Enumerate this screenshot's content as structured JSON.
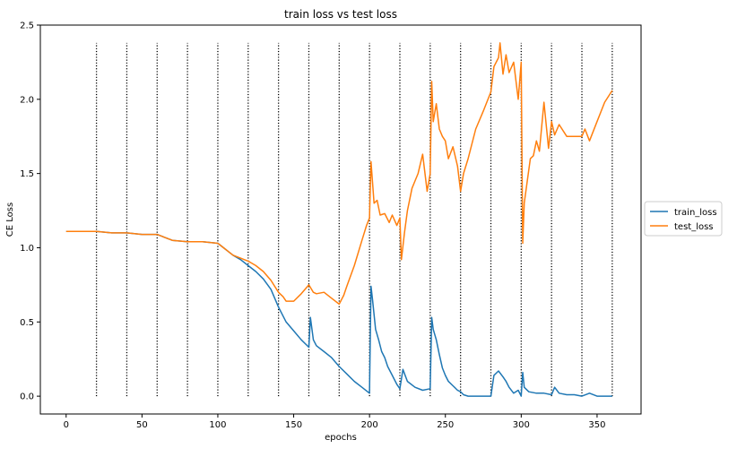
{
  "chart_data": {
    "type": "line",
    "title": "train loss vs test loss",
    "xlabel": "epochs",
    "ylabel": "CE Loss",
    "xlim": [
      -17,
      379
    ],
    "ylim": [
      -0.12,
      2.5
    ],
    "xticks": [
      0,
      50,
      100,
      150,
      200,
      250,
      300,
      350
    ],
    "yticks": [
      0.0,
      0.5,
      1.0,
      1.5,
      2.0,
      2.5
    ],
    "xtick_labels": [
      "0",
      "50",
      "100",
      "150",
      "200",
      "250",
      "300",
      "350"
    ],
    "ytick_labels": [
      "0.0",
      "0.5",
      "1.0",
      "1.5",
      "2.0",
      "2.5"
    ],
    "legend_position": "right, outside plot",
    "vlines": {
      "x": [
        20,
        40,
        60,
        80,
        100,
        120,
        140,
        160,
        180,
        200,
        220,
        240,
        260,
        280,
        300,
        320,
        340,
        360
      ],
      "ymin": 0.0,
      "ymax": 2.38,
      "style": "dotted",
      "color": "#000000"
    },
    "series": [
      {
        "name": "train_loss",
        "color": "#1f77b4",
        "x": [
          0,
          10,
          20,
          30,
          40,
          50,
          60,
          65,
          70,
          80,
          90,
          100,
          105,
          110,
          115,
          120,
          125,
          130,
          135,
          140,
          145,
          150,
          155,
          160,
          161,
          163,
          165,
          170,
          175,
          180,
          185,
          190,
          195,
          200,
          201,
          202,
          204,
          206,
          208,
          210,
          212,
          215,
          218,
          220,
          222,
          225,
          230,
          235,
          240,
          241,
          242,
          244,
          246,
          248,
          250,
          252,
          255,
          258,
          260,
          262,
          265,
          270,
          275,
          280,
          282,
          285,
          288,
          290,
          292,
          295,
          298,
          300,
          301,
          302,
          305,
          310,
          315,
          320,
          322,
          325,
          330,
          335,
          340,
          345,
          350,
          355,
          360
        ],
        "y": [
          1.11,
          1.11,
          1.11,
          1.1,
          1.1,
          1.09,
          1.09,
          1.07,
          1.05,
          1.04,
          1.04,
          1.03,
          0.99,
          0.95,
          0.92,
          0.88,
          0.84,
          0.79,
          0.72,
          0.6,
          0.5,
          0.44,
          0.38,
          0.33,
          0.53,
          0.38,
          0.34,
          0.3,
          0.26,
          0.2,
          0.15,
          0.1,
          0.06,
          0.02,
          0.74,
          0.65,
          0.45,
          0.38,
          0.3,
          0.26,
          0.2,
          0.14,
          0.08,
          0.05,
          0.18,
          0.1,
          0.06,
          0.04,
          0.05,
          0.53,
          0.45,
          0.38,
          0.28,
          0.19,
          0.14,
          0.1,
          0.07,
          0.04,
          0.03,
          0.01,
          0.0,
          0.0,
          0.0,
          0.0,
          0.14,
          0.17,
          0.13,
          0.1,
          0.06,
          0.02,
          0.04,
          0.0,
          0.16,
          0.06,
          0.03,
          0.02,
          0.02,
          0.01,
          0.06,
          0.02,
          0.01,
          0.01,
          0.0,
          0.02,
          0.0,
          0.0,
          0.0
        ]
      },
      {
        "name": "test_loss",
        "color": "#ff7f0e",
        "x": [
          0,
          10,
          20,
          30,
          40,
          50,
          60,
          65,
          70,
          80,
          90,
          100,
          105,
          110,
          115,
          120,
          125,
          130,
          135,
          140,
          143,
          145,
          150,
          155,
          160,
          163,
          165,
          170,
          175,
          180,
          183,
          185,
          190,
          195,
          198,
          200,
          201,
          203,
          205,
          207,
          210,
          213,
          215,
          218,
          220,
          221,
          223,
          225,
          228,
          230,
          232,
          235,
          238,
          240,
          241,
          242,
          244,
          246,
          248,
          250,
          252,
          255,
          258,
          260,
          262,
          265,
          270,
          275,
          280,
          282,
          285,
          286,
          288,
          290,
          292,
          295,
          298,
          300,
          301,
          302,
          304,
          306,
          308,
          310,
          312,
          315,
          318,
          320,
          322,
          325,
          330,
          335,
          340,
          342,
          345,
          350,
          355,
          360
        ],
        "y": [
          1.11,
          1.11,
          1.11,
          1.1,
          1.1,
          1.09,
          1.09,
          1.07,
          1.05,
          1.04,
          1.04,
          1.03,
          0.99,
          0.95,
          0.93,
          0.91,
          0.88,
          0.84,
          0.78,
          0.7,
          0.67,
          0.64,
          0.64,
          0.69,
          0.75,
          0.7,
          0.69,
          0.7,
          0.66,
          0.62,
          0.68,
          0.74,
          0.88,
          1.05,
          1.15,
          1.2,
          1.58,
          1.3,
          1.32,
          1.22,
          1.23,
          1.17,
          1.22,
          1.15,
          1.2,
          0.92,
          1.1,
          1.25,
          1.4,
          1.45,
          1.5,
          1.63,
          1.38,
          1.5,
          2.12,
          1.85,
          1.97,
          1.8,
          1.75,
          1.72,
          1.6,
          1.68,
          1.55,
          1.38,
          1.5,
          1.6,
          1.8,
          1.92,
          2.05,
          2.22,
          2.28,
          2.38,
          2.17,
          2.3,
          2.18,
          2.25,
          2.0,
          2.25,
          1.03,
          1.3,
          1.45,
          1.6,
          1.62,
          1.72,
          1.65,
          1.98,
          1.67,
          1.85,
          1.76,
          1.83,
          1.75,
          1.75,
          1.75,
          1.8,
          1.72,
          1.85,
          1.98,
          2.06
        ]
      }
    ]
  }
}
